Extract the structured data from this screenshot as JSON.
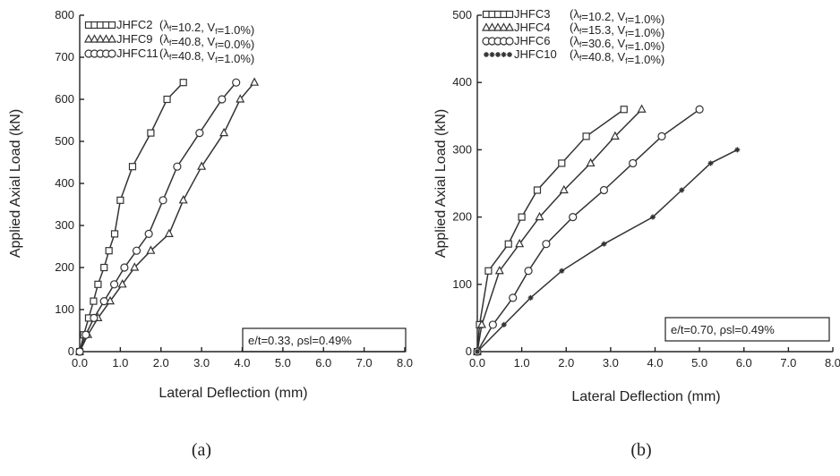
{
  "chart_data": [
    {
      "type": "line",
      "caption": "(a)",
      "xlabel": "Lateral Deflection (mm)",
      "ylabel": "Applied Axial Load (kN)",
      "xlim": [
        0,
        8
      ],
      "ylim": [
        0,
        800
      ],
      "xticks": [
        "0.0",
        "1.0",
        "2.0",
        "3.0",
        "4.0",
        "5.0",
        "6.0",
        "7.0",
        "8.0"
      ],
      "yticks": [
        "0",
        "100",
        "200",
        "300",
        "400",
        "500",
        "600",
        "700",
        "800"
      ],
      "annotation": "e/t=0.33, ρsl=0.49%",
      "legend_position": "top-left",
      "series": [
        {
          "name": "JHFC2",
          "params": "(λf=10.2, Vf=1.0%)",
          "marker": "square",
          "x": [
            0,
            0.1,
            0.22,
            0.34,
            0.45,
            0.6,
            0.72,
            0.86,
            1.0,
            1.3,
            1.75,
            2.15,
            2.55
          ],
          "y": [
            0,
            40,
            80,
            120,
            160,
            200,
            240,
            280,
            360,
            440,
            520,
            600,
            640
          ]
        },
        {
          "name": "JHFC9",
          "params": "(λf=40.8, Vf=0.0%)",
          "marker": "triangle",
          "x": [
            0,
            0.2,
            0.45,
            0.75,
            1.05,
            1.35,
            1.75,
            2.2,
            2.55,
            3.0,
            3.55,
            3.95,
            4.3
          ],
          "y": [
            0,
            40,
            80,
            120,
            160,
            200,
            240,
            280,
            360,
            440,
            520,
            600,
            640
          ]
        },
        {
          "name": "JHFC11",
          "params": "(λf=40.8, Vf=1.0%)",
          "marker": "circle",
          "x": [
            0,
            0.15,
            0.35,
            0.6,
            0.85,
            1.1,
            1.4,
            1.7,
            2.05,
            2.4,
            2.95,
            3.5,
            3.85
          ],
          "y": [
            0,
            40,
            80,
            120,
            160,
            200,
            240,
            280,
            360,
            440,
            520,
            600,
            640
          ]
        }
      ]
    },
    {
      "type": "line",
      "caption": "(b)",
      "xlabel": "Lateral Deflection (mm)",
      "ylabel": "Applied Axial Load (kN)",
      "xlim": [
        0,
        8
      ],
      "ylim": [
        0,
        500
      ],
      "xticks": [
        "0.0",
        "1.0",
        "2.0",
        "3.0",
        "4.0",
        "5.0",
        "6.0",
        "7.0",
        "8.0"
      ],
      "yticks": [
        "0",
        "100",
        "200",
        "300",
        "400",
        "500"
      ],
      "annotation": "e/t=0.70, ρsl=0.49%",
      "legend_position": "top-left",
      "series": [
        {
          "name": "JHFC3",
          "params": "(λf=10.2, Vf=1.0%)",
          "marker": "square",
          "x": [
            0,
            0.05,
            0.25,
            0.7,
            1.0,
            1.35,
            1.9,
            2.45,
            3.3
          ],
          "y": [
            0,
            40,
            120,
            160,
            200,
            240,
            280,
            320,
            360
          ]
        },
        {
          "name": "JHFC4",
          "params": "(λf=15.3, Vf=1.0%)",
          "marker": "triangle",
          "x": [
            0,
            0.1,
            0.5,
            0.95,
            1.4,
            1.95,
            2.55,
            3.1,
            3.7
          ],
          "y": [
            0,
            40,
            120,
            160,
            200,
            240,
            280,
            320,
            360
          ]
        },
        {
          "name": "JHFC6",
          "params": "(λf=30.6, Vf=1.0%)",
          "marker": "circle",
          "x": [
            0,
            0.35,
            0.8,
            1.15,
            1.55,
            2.15,
            2.85,
            3.5,
            4.15,
            5.0
          ],
          "y": [
            0,
            40,
            80,
            120,
            160,
            200,
            240,
            280,
            320,
            360
          ]
        },
        {
          "name": "JHFC10",
          "params": "(λf=40.8, Vf=1.0%)",
          "marker": "star",
          "x": [
            0,
            0.6,
            1.2,
            1.9,
            2.85,
            3.95,
            4.6,
            5.25,
            5.85
          ],
          "y": [
            0,
            40,
            80,
            120,
            160,
            200,
            240,
            280,
            300
          ]
        }
      ]
    }
  ]
}
